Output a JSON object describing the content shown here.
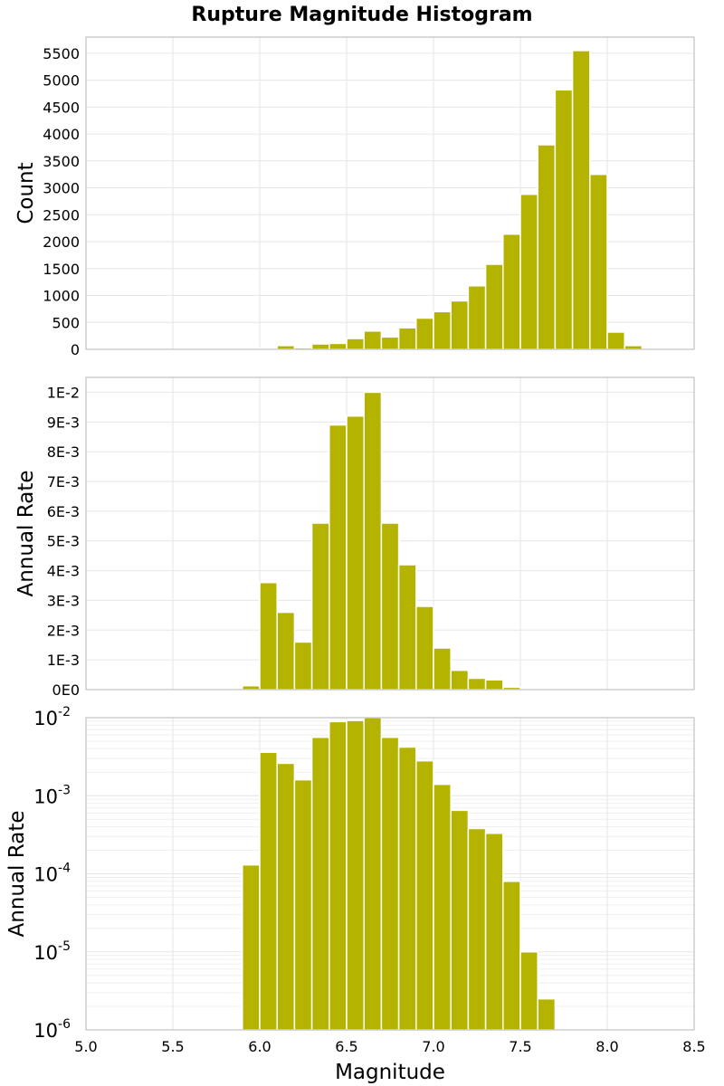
{
  "title": "Rupture Magnitude Histogram",
  "colors": {
    "bar": "#b3b300"
  },
  "chart_data": [
    {
      "type": "bar",
      "ylabel": "Count",
      "xlim": [
        5.0,
        8.5
      ],
      "ylim": [
        0,
        5800
      ],
      "yticks": [
        0,
        500,
        1000,
        1500,
        2000,
        2500,
        3000,
        3500,
        4000,
        4500,
        5000,
        5500
      ],
      "ytick_labels": [
        "0",
        "500",
        "1000",
        "1500",
        "2000",
        "2500",
        "3000",
        "3500",
        "4000",
        "4500",
        "5000",
        "5500"
      ],
      "bin_width": 0.1,
      "x": [
        5.95,
        6.05,
        6.15,
        6.25,
        6.35,
        6.45,
        6.55,
        6.65,
        6.75,
        6.85,
        6.95,
        7.05,
        7.15,
        7.25,
        7.35,
        7.45,
        7.55,
        7.65,
        7.75,
        7.85,
        7.95,
        8.05,
        8.15
      ],
      "values": [
        5,
        25,
        70,
        30,
        100,
        110,
        200,
        340,
        230,
        400,
        580,
        700,
        900,
        1180,
        1580,
        2140,
        2880,
        3800,
        4820,
        5550,
        3250,
        320,
        70
      ],
      "grid": true
    },
    {
      "type": "bar",
      "ylabel": "Annual Rate",
      "xlim": [
        5.0,
        8.5
      ],
      "ylim": [
        0,
        0.0105
      ],
      "yticks": [
        0,
        0.001,
        0.002,
        0.003,
        0.004,
        0.005,
        0.006,
        0.007,
        0.008,
        0.009,
        0.01
      ],
      "ytick_labels": [
        "0E0",
        "1E-3",
        "2E-3",
        "3E-3",
        "4E-3",
        "5E-3",
        "6E-3",
        "7E-3",
        "8E-3",
        "9E-3",
        "1E-2"
      ],
      "bin_width": 0.1,
      "x": [
        5.95,
        6.05,
        6.15,
        6.25,
        6.35,
        6.45,
        6.55,
        6.65,
        6.75,
        6.85,
        6.95,
        7.05,
        7.15,
        7.25,
        7.35,
        7.45,
        7.55,
        7.65
      ],
      "values": [
        0.00013,
        0.0036,
        0.0026,
        0.0016,
        0.0056,
        0.0089,
        0.0092,
        0.01,
        0.0056,
        0.0042,
        0.0028,
        0.0014,
        0.00065,
        0.00038,
        0.00033,
        8e-05,
        1e-05,
        2.5e-06
      ],
      "grid": true
    },
    {
      "type": "bar",
      "ylabel": "Annual Rate",
      "xlabel": "Magnitude",
      "yscale": "log",
      "xlim": [
        5.0,
        8.5
      ],
      "ylim": [
        1e-06,
        0.01
      ],
      "xticks": [
        5.0,
        5.5,
        6.0,
        6.5,
        7.0,
        7.5,
        8.0,
        8.5
      ],
      "xtick_labels": [
        "5.0",
        "5.5",
        "6.0",
        "6.5",
        "7.0",
        "7.5",
        "8.0",
        "8.5"
      ],
      "yticks": [
        1e-06,
        1e-05,
        0.0001,
        0.001,
        0.01
      ],
      "ytick_labels": [
        {
          "base": "10",
          "exp": "-6"
        },
        {
          "base": "10",
          "exp": "-5"
        },
        {
          "base": "10",
          "exp": "-4"
        },
        {
          "base": "10",
          "exp": "-3"
        },
        {
          "base": "10",
          "exp": "-2"
        }
      ],
      "bin_width": 0.1,
      "x": [
        5.95,
        6.05,
        6.15,
        6.25,
        6.35,
        6.45,
        6.55,
        6.65,
        6.75,
        6.85,
        6.95,
        7.05,
        7.15,
        7.25,
        7.35,
        7.45,
        7.55,
        7.65
      ],
      "values": [
        0.00013,
        0.0036,
        0.0026,
        0.0016,
        0.0056,
        0.0089,
        0.0092,
        0.01,
        0.0056,
        0.0042,
        0.0028,
        0.0014,
        0.00065,
        0.00038,
        0.00033,
        8e-05,
        1e-05,
        2.5e-06
      ],
      "grid": true
    }
  ]
}
